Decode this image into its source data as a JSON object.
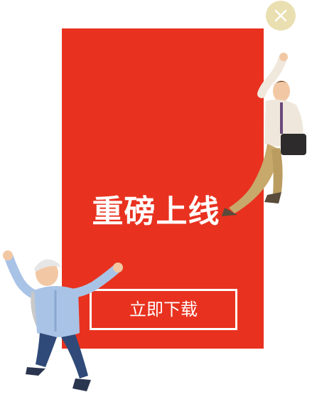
{
  "popup": {
    "headline": "重磅上线",
    "cta_label": "立即下载"
  },
  "icons": {
    "close": "close-icon",
    "businessman": "businessman-illustration",
    "jumping_man": "jumping-man-illustration"
  },
  "colors": {
    "card_red": "#e8321f",
    "close_bg": "#eadfb0",
    "text_white": "#ffffff"
  }
}
